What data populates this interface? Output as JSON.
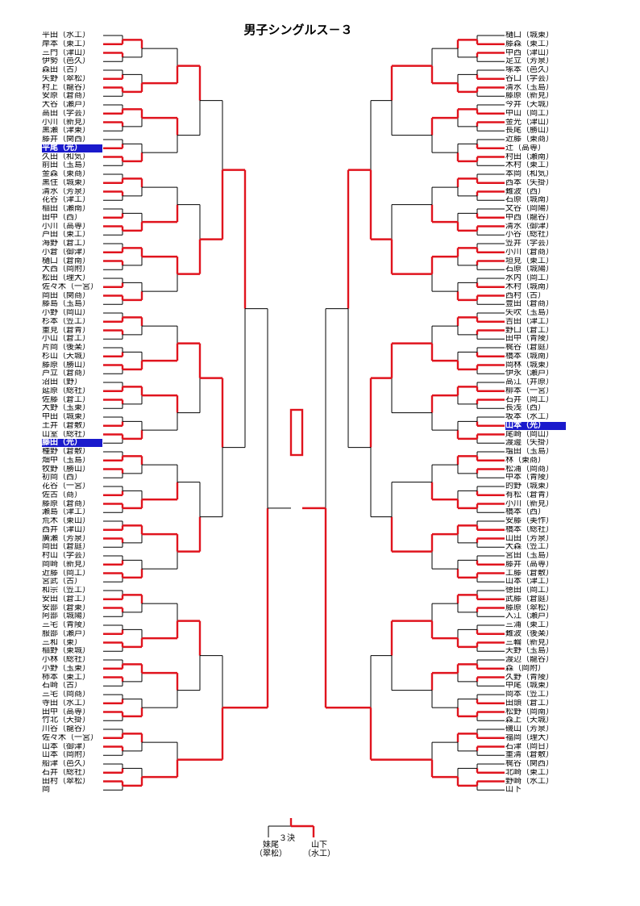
{
  "title": "男子シングルス－３",
  "colors": {
    "win": "#e0141e",
    "line": "#000000",
    "highlight": "#1a1acc"
  },
  "left_players": [
    {
      "name": "平田",
      "team": "水工"
    },
    {
      "name": "岸本",
      "team": "東工"
    },
    {
      "name": "三門",
      "team": "津山"
    },
    {
      "name": "伊勢",
      "team": "邑久"
    },
    {
      "name": "森田",
      "team": "古"
    },
    {
      "name": "矢野",
      "team": "翠松"
    },
    {
      "name": "村上",
      "team": "龍谷"
    },
    {
      "name": "安原",
      "team": "倉商"
    },
    {
      "name": "大谷",
      "team": "瀬戸"
    },
    {
      "name": "高田",
      "team": "学芸"
    },
    {
      "name": "小川",
      "team": "新見"
    },
    {
      "name": "黒瀬",
      "team": "津東"
    },
    {
      "name": "藤井",
      "team": "関西"
    },
    {
      "name": "平尾",
      "team": "光",
      "hl": true
    },
    {
      "name": "久田",
      "team": "和気"
    },
    {
      "name": "前田",
      "team": "玉島"
    },
    {
      "name": "金森",
      "team": "東商"
    },
    {
      "name": "黒住",
      "team": "城東"
    },
    {
      "name": "清水",
      "team": "芳泉"
    },
    {
      "name": "花谷",
      "team": "津工"
    },
    {
      "name": "稲田",
      "team": "瀬南"
    },
    {
      "name": "田中",
      "team": "西"
    },
    {
      "name": "小川",
      "team": "高専"
    },
    {
      "name": "芦田",
      "team": "東工"
    },
    {
      "name": "海野",
      "team": "倉工"
    },
    {
      "name": "小倉",
      "team": "御津"
    },
    {
      "name": "樋口",
      "team": "倉南"
    },
    {
      "name": "大西",
      "team": "岡附"
    },
    {
      "name": "松田",
      "team": "理大"
    },
    {
      "name": "佐々木",
      "team": "一宮"
    },
    {
      "name": "岡田",
      "team": "関商"
    },
    {
      "name": "藤島",
      "team": "玉島"
    },
    {
      "name": "小野",
      "team": "岡山"
    },
    {
      "name": "杉本",
      "team": "笠工"
    },
    {
      "name": "重見",
      "team": "倉青"
    },
    {
      "name": "小山",
      "team": "倉工"
    },
    {
      "name": "片岡",
      "team": "後楽"
    },
    {
      "name": "杉山",
      "team": "天城"
    },
    {
      "name": "藤原",
      "team": "勝山"
    },
    {
      "name": "芦立",
      "team": "倉商"
    },
    {
      "name": "沼田",
      "team": "野"
    },
    {
      "name": "延原",
      "team": "総社"
    },
    {
      "name": "佐藤",
      "team": "倉工"
    },
    {
      "name": "大野",
      "team": "玉東"
    },
    {
      "name": "中田",
      "team": "城東"
    },
    {
      "name": "土井",
      "team": "倉敷"
    },
    {
      "name": "山室",
      "team": "総社"
    },
    {
      "name": "藤田",
      "team": "光",
      "hl": true
    },
    {
      "name": "種野",
      "team": "倉敷"
    },
    {
      "name": "畑中",
      "team": "玉島"
    },
    {
      "name": "牧野",
      "team": "勝山"
    },
    {
      "name": "初岡",
      "team": "西"
    },
    {
      "name": "花谷",
      "team": "一宮"
    },
    {
      "name": "佐古",
      "team": "商"
    },
    {
      "name": "藤原",
      "team": "倉商"
    },
    {
      "name": "瀬島",
      "team": "津工"
    },
    {
      "name": "荒木",
      "team": "東山"
    },
    {
      "name": "西井",
      "team": "津山"
    },
    {
      "name": "廣瀬",
      "team": "芳泉"
    },
    {
      "name": "岡田",
      "team": "倉庭"
    },
    {
      "name": "村山",
      "team": "学芸"
    },
    {
      "name": "岡崎",
      "team": "新見"
    },
    {
      "name": "近藤",
      "team": "岡工"
    },
    {
      "name": "宮武",
      "team": "古"
    },
    {
      "name": "和宗",
      "team": "笠工"
    },
    {
      "name": "安田",
      "team": "倉工"
    },
    {
      "name": "安部",
      "team": "倉東"
    },
    {
      "name": "阿部",
      "team": "城陽"
    },
    {
      "name": "三宅",
      "team": "青陵"
    },
    {
      "name": "服部",
      "team": "瀬戸"
    },
    {
      "name": "三和",
      "team": "東"
    },
    {
      "name": "稲野",
      "team": "東城"
    },
    {
      "name": "小林",
      "team": "総社"
    },
    {
      "name": "小野",
      "team": "玉東"
    },
    {
      "name": "柿本",
      "team": "東工"
    },
    {
      "name": "石崎",
      "team": "古"
    },
    {
      "name": "三宅",
      "team": "岡商"
    },
    {
      "name": "寺田",
      "team": "水工"
    },
    {
      "name": "田中",
      "team": "高専"
    },
    {
      "name": "竹北",
      "team": "天掛"
    },
    {
      "name": "川谷",
      "team": "龍谷"
    },
    {
      "name": "佐々木",
      "team": "一宮"
    },
    {
      "name": "山本",
      "team": "御津"
    },
    {
      "name": "山本",
      "team": "岡附"
    },
    {
      "name": "船津",
      "team": "邑久"
    },
    {
      "name": "石井",
      "team": "総社"
    },
    {
      "name": "田村",
      "team": "翠松"
    },
    {
      "name": "岡",
      "team": ""
    }
  ],
  "right_players": [
    {
      "name": "樋口",
      "team": "城東"
    },
    {
      "name": "藤森",
      "team": "東工"
    },
    {
      "name": "中西",
      "team": "津山"
    },
    {
      "name": "足立",
      "team": "芳泉"
    },
    {
      "name": "塚本",
      "team": "邑久"
    },
    {
      "name": "谷口",
      "team": "学芸"
    },
    {
      "name": "清水",
      "team": "玉島"
    },
    {
      "name": "藤原",
      "team": "新見"
    },
    {
      "name": "今井",
      "team": "天城"
    },
    {
      "name": "中山",
      "team": "岡工"
    },
    {
      "name": "金光",
      "team": "津山"
    },
    {
      "name": "長尾",
      "team": "勝山"
    },
    {
      "name": "近藤",
      "team": "東商"
    },
    {
      "name": "辻",
      "team": "高専"
    },
    {
      "name": "村田",
      "team": "瀬南"
    },
    {
      "name": "木村",
      "team": "東工"
    },
    {
      "name": "本岡",
      "team": "和気"
    },
    {
      "name": "西本",
      "team": "矢掛"
    },
    {
      "name": "難波",
      "team": "西"
    },
    {
      "name": "石原",
      "team": "城南"
    },
    {
      "name": "文谷",
      "team": "岡陽"
    },
    {
      "name": "中西",
      "team": "龍谷"
    },
    {
      "name": "清水",
      "team": "御津"
    },
    {
      "name": "小谷",
      "team": "総社"
    },
    {
      "name": "笠井",
      "team": "学芸"
    },
    {
      "name": "小川",
      "team": "倉商"
    },
    {
      "name": "垣見",
      "team": "東工"
    },
    {
      "name": "石原",
      "team": "城陽"
    },
    {
      "name": "水内",
      "team": "岡工"
    },
    {
      "name": "木村",
      "team": "城南"
    },
    {
      "name": "西村",
      "team": "古"
    },
    {
      "name": "豊田",
      "team": "倉商"
    },
    {
      "name": "矢吹",
      "team": "玉島"
    },
    {
      "name": "吉田",
      "team": "津工"
    },
    {
      "name": "野口",
      "team": "倉工"
    },
    {
      "name": "田中",
      "team": "青陵"
    },
    {
      "name": "梶谷",
      "team": "倉庭"
    },
    {
      "name": "橋本",
      "team": "城南"
    },
    {
      "name": "岡林",
      "team": "城東"
    },
    {
      "name": "伊永",
      "team": "瀬戸"
    },
    {
      "name": "高江",
      "team": "井原"
    },
    {
      "name": "柳本",
      "team": "一宮"
    },
    {
      "name": "石井",
      "team": "岡工"
    },
    {
      "name": "長浅",
      "team": "西"
    },
    {
      "name": "坂本",
      "team": "水工"
    },
    {
      "name": "山本",
      "team": "光",
      "hl": true
    },
    {
      "name": "尾崎",
      "team": "岡山"
    },
    {
      "name": "渡邊",
      "team": "矢掛"
    },
    {
      "name": "塩田",
      "team": "玉島"
    },
    {
      "name": "林",
      "team": "東商"
    },
    {
      "name": "松浦",
      "team": "岡商"
    },
    {
      "name": "中本",
      "team": "青陵"
    },
    {
      "name": "的野",
      "team": "城東"
    },
    {
      "name": "有松",
      "team": "倉青"
    },
    {
      "name": "小川",
      "team": "新見"
    },
    {
      "name": "橋本",
      "team": "西"
    },
    {
      "name": "安藤",
      "team": "美作"
    },
    {
      "name": "橋本",
      "team": "総社"
    },
    {
      "name": "山田",
      "team": "芳泉"
    },
    {
      "name": "大森",
      "team": "笠工"
    },
    {
      "name": "宮田",
      "team": "玉島"
    },
    {
      "name": "藤井",
      "team": "高専"
    },
    {
      "name": "工藤",
      "team": "倉敷"
    },
    {
      "name": "山本",
      "team": "津工"
    },
    {
      "name": "徳田",
      "team": "岡工"
    },
    {
      "name": "武藤",
      "team": "倉庭"
    },
    {
      "name": "藤原",
      "team": "翠松"
    },
    {
      "name": "入江",
      "team": "瀬戸"
    },
    {
      "name": "三浦",
      "team": "東工"
    },
    {
      "name": "難波",
      "team": "後楽"
    },
    {
      "name": "三輪",
      "team": "新見"
    },
    {
      "name": "天野",
      "team": "玉島"
    },
    {
      "name": "渡辺",
      "team": "龍谷"
    },
    {
      "name": "森",
      "team": "岡附"
    },
    {
      "name": "久野",
      "team": "青陵"
    },
    {
      "name": "中尾",
      "team": "城東"
    },
    {
      "name": "岡本",
      "team": "笠工"
    },
    {
      "name": "田頭",
      "team": "倉工"
    },
    {
      "name": "松野",
      "team": "岡南"
    },
    {
      "name": "森上",
      "team": "天城"
    },
    {
      "name": "磯山",
      "team": "芳泉"
    },
    {
      "name": "福岡",
      "team": "理大"
    },
    {
      "name": "石津",
      "team": "岡日"
    },
    {
      "name": "重清",
      "team": "倉敷"
    },
    {
      "name": "梶谷",
      "team": "関西"
    },
    {
      "name": "北崎",
      "team": "東工"
    },
    {
      "name": "野崎",
      "team": "水工"
    },
    {
      "name": "山下",
      "team": ""
    }
  ],
  "third_place": {
    "label": "３決",
    "left_player": "妹尾",
    "left_team": "（翠松）",
    "right_player": "山下",
    "right_team": "（水工）"
  }
}
